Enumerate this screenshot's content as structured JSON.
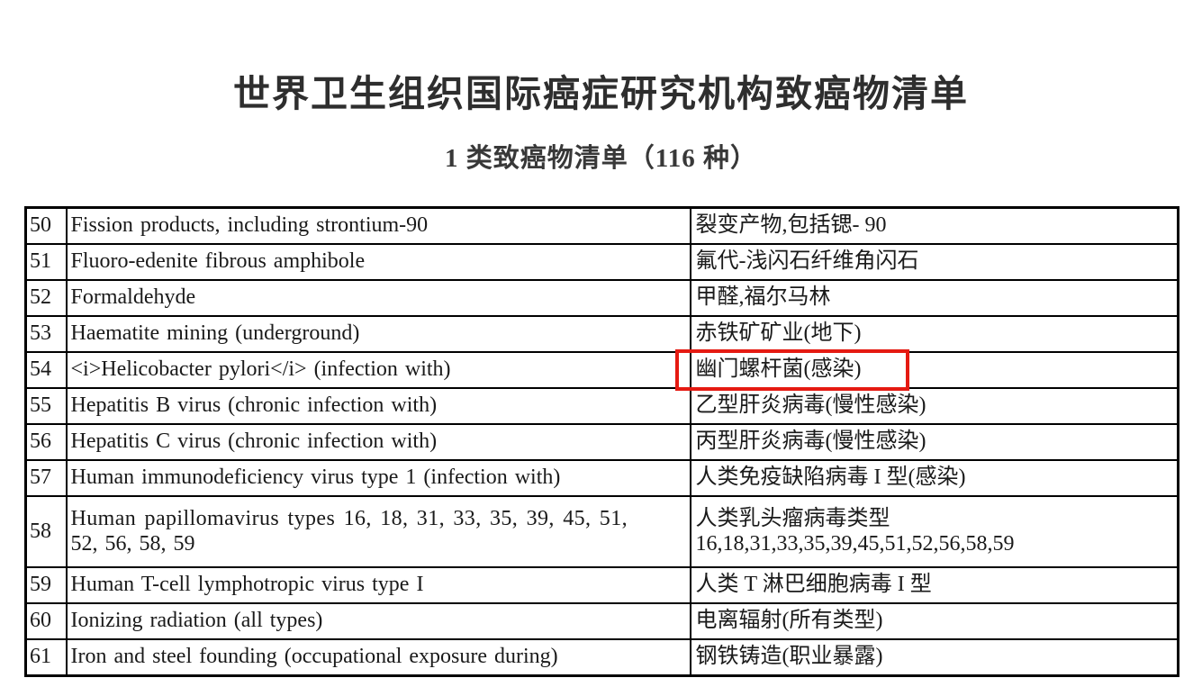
{
  "page": {
    "title": "世界卫生组织国际癌症研究机构致癌物清单",
    "subtitle": "1 类致癌物清单（116 种）"
  },
  "annotation": {
    "highlight_color": "#e51a12",
    "highlighted_text": "幽门螺杆菌(感染)",
    "highlighted_row_no": "54"
  },
  "table": {
    "rows": [
      {
        "no": "50",
        "en": "Fission products, including strontium-90",
        "zh": "裂变产物,包括锶- 90"
      },
      {
        "no": "51",
        "en": "Fluoro-edenite fibrous amphibole",
        "zh": "氟代-浅闪石纤维角闪石"
      },
      {
        "no": "52",
        "en": "Formaldehyde",
        "zh": "甲醛,福尔马林"
      },
      {
        "no": "53",
        "en": "Haematite mining (underground)",
        "zh": "赤铁矿矿业(地下)"
      },
      {
        "no": "54",
        "en": "<i>Helicobacter pylori</i> (infection with)",
        "zh": "幽门螺杆菌(感染)"
      },
      {
        "no": "55",
        "en": "Hepatitis B virus (chronic infection with)",
        "zh": "乙型肝炎病毒(慢性感染)"
      },
      {
        "no": "56",
        "en": "Hepatitis C virus (chronic infection with)",
        "zh": "丙型肝炎病毒(慢性感染)"
      },
      {
        "no": "57",
        "en": "Human immunodeficiency virus type 1 (infection with)",
        "zh": "人类免疫缺陷病毒 I 型(感染)"
      },
      {
        "no": "58",
        "en_lines": [
          "Human papillomavirus types 16, 18, 31, 33, 35, 39, 45, 51,",
          "52, 56, 58, 59"
        ],
        "zh_lines": [
          "人类乳头瘤病毒类型",
          "16,18,31,33,35,39,45,51,52,56,58,59"
        ]
      },
      {
        "no": "59",
        "en": "Human T-cell lymphotropic virus type I",
        "zh": "人类 T 淋巴细胞病毒 I 型"
      },
      {
        "no": "60",
        "en": "Ionizing radiation (all types)",
        "zh": "电离辐射(所有类型)"
      },
      {
        "no": "61",
        "en": "Iron and steel founding (occupational exposure during)",
        "zh": "钢铁铸造(职业暴露)"
      }
    ]
  }
}
